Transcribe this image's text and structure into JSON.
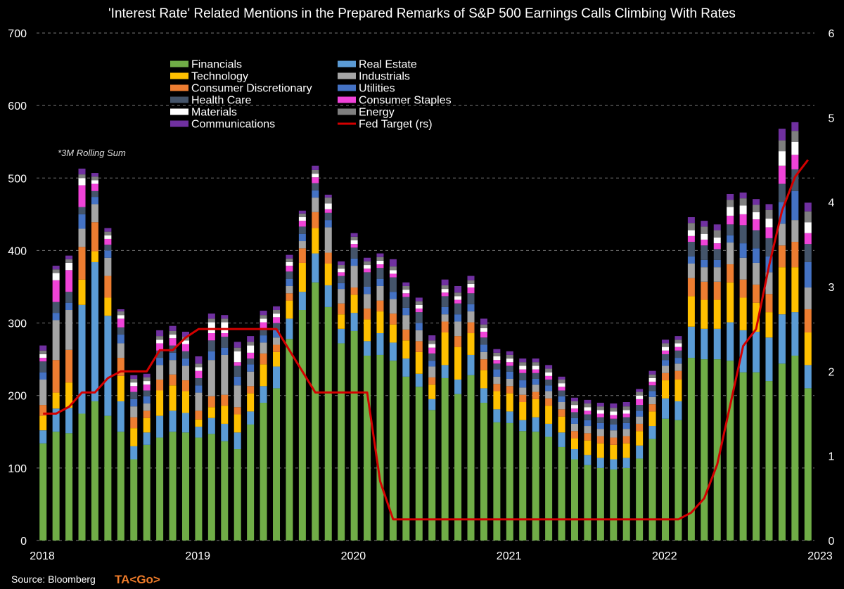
{
  "chart_data": {
    "type": "bar",
    "stacked": true,
    "title": "'Interest Rate' Related Mentions in the Prepared Remarks of S&P 500 Earnings Calls Climbing With Rates",
    "annotation": "*3M Rolling Sum",
    "ylim": [
      0,
      700
    ],
    "y_ticks": [
      0,
      100,
      200,
      300,
      400,
      500,
      600,
      700
    ],
    "y2lim": [
      0,
      6
    ],
    "y2_ticks": [
      0,
      1,
      2,
      3,
      4,
      5,
      6
    ],
    "x_tick_labels": [
      "2018",
      "2019",
      "2020",
      "2021",
      "2022",
      "2023"
    ],
    "grid": true,
    "legend_placement": "top-left",
    "months": [
      "2018-01",
      "2018-02",
      "2018-03",
      "2018-04",
      "2018-05",
      "2018-06",
      "2018-07",
      "2018-08",
      "2018-09",
      "2018-10",
      "2018-11",
      "2018-12",
      "2019-01",
      "2019-02",
      "2019-03",
      "2019-04",
      "2019-05",
      "2019-06",
      "2019-07",
      "2019-08",
      "2019-09",
      "2019-10",
      "2019-11",
      "2019-12",
      "2020-01",
      "2020-02",
      "2020-03",
      "2020-04",
      "2020-05",
      "2020-06",
      "2020-07",
      "2020-08",
      "2020-09",
      "2020-10",
      "2020-11",
      "2020-12",
      "2021-01",
      "2021-02",
      "2021-03",
      "2021-04",
      "2021-05",
      "2021-06",
      "2021-07",
      "2021-08",
      "2021-09",
      "2021-10",
      "2021-11",
      "2021-12",
      "2022-01",
      "2022-02",
      "2022-03",
      "2022-04",
      "2022-05",
      "2022-06",
      "2022-07",
      "2022-08",
      "2022-09",
      "2022-10",
      "2022-11",
      "2022-12"
    ],
    "series": [
      {
        "name": "Financials",
        "color": "#70ad47",
        "values": [
          134,
          150,
          148,
          175,
          192,
          172,
          150,
          112,
          132,
          142,
          150,
          149,
          142,
          147,
          137,
          126,
          160,
          190,
          210,
          278,
          318,
          356,
          322,
          272,
          289,
          255,
          256,
          248,
          226,
          212,
          180,
          224,
          202,
          228,
          190,
          163,
          162,
          151,
          150,
          143,
          129,
          112,
          104,
          100,
          98,
          100,
          113,
          140,
          168,
          166,
          252,
          250,
          250,
          248,
          232,
          232,
          220,
          244,
          255,
          210
        ]
      },
      {
        "name": "Real Estate",
        "color": "#5b9bd5",
        "values": [
          18,
          32,
          35,
          150,
          192,
          138,
          42,
          18,
          17,
          30,
          29,
          27,
          15,
          22,
          24,
          23,
          18,
          23,
          30,
          28,
          25,
          40,
          30,
          20,
          25,
          20,
          30,
          25,
          25,
          18,
          15,
          18,
          20,
          28,
          20,
          18,
          16,
          15,
          20,
          18,
          20,
          14,
          14,
          14,
          14,
          14,
          18,
          18,
          28,
          26,
          43,
          42,
          42,
          53,
          58,
          56,
          60,
          68,
          60,
          32
        ]
      },
      {
        "name": "Technology",
        "color": "#ffc000",
        "values": [
          20,
          22,
          35,
          35,
          15,
          25,
          35,
          25,
          20,
          35,
          35,
          30,
          10,
          15,
          25,
          25,
          25,
          30,
          20,
          25,
          40,
          35,
          30,
          20,
          25,
          30,
          30,
          25,
          25,
          30,
          20,
          45,
          45,
          30,
          25,
          25,
          25,
          25,
          25,
          25,
          22,
          15,
          20,
          20,
          20,
          20,
          20,
          20,
          25,
          30,
          42,
          40,
          40,
          55,
          45,
          40,
          35,
          65,
          62,
          45
        ]
      },
      {
        "name": "Consumer Discretionary",
        "color": "#ed7d31",
        "values": [
          15,
          45,
          45,
          45,
          40,
          30,
          25,
          15,
          10,
          15,
          15,
          15,
          12,
          15,
          15,
          10,
          10,
          15,
          10,
          10,
          20,
          22,
          15,
          15,
          10,
          15,
          15,
          15,
          15,
          15,
          10,
          15,
          15,
          15,
          15,
          10,
          10,
          10,
          10,
          10,
          10,
          10,
          10,
          10,
          10,
          10,
          10,
          10,
          10,
          12,
          25,
          25,
          25,
          25,
          25,
          25,
          25,
          30,
          35,
          32
        ]
      },
      {
        "name": "Industrials",
        "color": "#a5a5a5",
        "values": [
          35,
          55,
          55,
          25,
          25,
          25,
          20,
          15,
          10,
          20,
          20,
          20,
          25,
          50,
          55,
          30,
          20,
          15,
          10,
          10,
          10,
          20,
          35,
          20,
          30,
          20,
          20,
          20,
          20,
          15,
          15,
          10,
          20,
          15,
          10,
          10,
          10,
          10,
          10,
          10,
          10,
          10,
          10,
          10,
          10,
          10,
          10,
          10,
          10,
          10,
          20,
          20,
          20,
          30,
          30,
          30,
          30,
          30,
          30,
          30
        ]
      },
      {
        "name": "Utilities",
        "color": "#4472c4",
        "values": [
          10,
          10,
          10,
          20,
          10,
          10,
          12,
          10,
          10,
          10,
          10,
          10,
          10,
          12,
          10,
          12,
          10,
          10,
          10,
          10,
          10,
          10,
          10,
          8,
          10,
          10,
          10,
          10,
          10,
          10,
          8,
          10,
          10,
          10,
          10,
          10,
          10,
          10,
          8,
          8,
          8,
          8,
          8,
          8,
          8,
          8,
          8,
          8,
          8,
          8,
          10,
          10,
          10,
          10,
          20,
          20,
          22,
          30,
          40,
          35
        ]
      },
      {
        "name": "Health Care",
        "color": "#44546a",
        "values": [
          15,
          15,
          15,
          10,
          8,
          8,
          10,
          10,
          8,
          10,
          10,
          10,
          10,
          15,
          15,
          15,
          8,
          10,
          10,
          10,
          10,
          10,
          10,
          10,
          15,
          20,
          15,
          20,
          15,
          15,
          10,
          15,
          15,
          15,
          10,
          8,
          8,
          10,
          8,
          8,
          8,
          8,
          8,
          8,
          8,
          8,
          8,
          8,
          8,
          10,
          20,
          20,
          15,
          15,
          25,
          25,
          25,
          25,
          30,
          25
        ]
      },
      {
        "name": "Consumer Staples",
        "color": "#f043d8",
        "values": [
          5,
          30,
          30,
          30,
          10,
          8,
          12,
          8,
          8,
          10,
          10,
          10,
          10,
          10,
          5,
          5,
          8,
          8,
          8,
          8,
          8,
          8,
          5,
          5,
          5,
          5,
          5,
          5,
          5,
          5,
          8,
          5,
          5,
          8,
          8,
          5,
          5,
          5,
          5,
          5,
          5,
          5,
          5,
          5,
          5,
          5,
          8,
          5,
          5,
          5,
          8,
          8,
          8,
          12,
          15,
          15,
          15,
          25,
          20,
          15
        ]
      },
      {
        "name": "Materials",
        "color": "#ffffff",
        "values": [
          5,
          10,
          10,
          10,
          5,
          5,
          5,
          5,
          5,
          5,
          5,
          5,
          5,
          15,
          15,
          15,
          10,
          5,
          5,
          5,
          5,
          5,
          8,
          5,
          5,
          5,
          5,
          5,
          5,
          5,
          5,
          5,
          5,
          5,
          5,
          5,
          5,
          5,
          5,
          5,
          5,
          5,
          5,
          5,
          5,
          5,
          5,
          5,
          5,
          5,
          8,
          8,
          8,
          12,
          12,
          10,
          12,
          20,
          18,
          15
        ]
      },
      {
        "name": "Energy",
        "color": "#7f7f7f",
        "values": [
          5,
          5,
          5,
          5,
          5,
          5,
          5,
          5,
          5,
          5,
          5,
          5,
          5,
          5,
          5,
          5,
          5,
          5,
          5,
          5,
          5,
          5,
          8,
          5,
          5,
          5,
          5,
          5,
          5,
          5,
          5,
          5,
          5,
          5,
          5,
          5,
          5,
          5,
          5,
          5,
          5,
          5,
          5,
          5,
          5,
          5,
          5,
          5,
          5,
          5,
          10,
          10,
          10,
          10,
          10,
          10,
          12,
          15,
          15,
          15
        ]
      },
      {
        "name": "Communications",
        "color": "#7030a0",
        "values": [
          7,
          5,
          5,
          8,
          5,
          5,
          3,
          5,
          5,
          8,
          7,
          7,
          10,
          7,
          5,
          8,
          8,
          6,
          5,
          5,
          4,
          6,
          4,
          5,
          5,
          5,
          5,
          10,
          5,
          5,
          7,
          8,
          9,
          6,
          8,
          5,
          5,
          5,
          5,
          5,
          4,
          5,
          5,
          5,
          6,
          6,
          4,
          5,
          5,
          5,
          8,
          8,
          8,
          8,
          8,
          8,
          8,
          16,
          12,
          12
        ]
      }
    ],
    "fed_target": {
      "name": "Fed Target (rs)",
      "color": "#d40000",
      "values": [
        1.5,
        1.5,
        1.58,
        1.75,
        1.75,
        1.92,
        2.0,
        2.0,
        2.0,
        2.25,
        2.25,
        2.4,
        2.5,
        2.5,
        2.5,
        2.5,
        2.5,
        2.5,
        2.5,
        2.25,
        2.0,
        1.75,
        1.75,
        1.75,
        1.75,
        1.75,
        0.7,
        0.25,
        0.25,
        0.25,
        0.25,
        0.25,
        0.25,
        0.25,
        0.25,
        0.25,
        0.25,
        0.25,
        0.25,
        0.25,
        0.25,
        0.25,
        0.25,
        0.25,
        0.25,
        0.25,
        0.25,
        0.25,
        0.25,
        0.25,
        0.33,
        0.5,
        0.9,
        1.6,
        2.3,
        2.5,
        3.25,
        3.9,
        4.3,
        4.5
      ]
    }
  },
  "legend": {
    "col1": [
      "Financials",
      "Technology",
      "Consumer Discretionary",
      "Health Care",
      "Materials",
      "Communications"
    ],
    "col2": [
      "Real Estate",
      "Industrials",
      "Utilities",
      "Consumer Staples",
      "Energy",
      "Fed Target (rs)"
    ]
  },
  "footer": {
    "source": "Source: Bloomberg",
    "brand": "TA<Go>"
  }
}
